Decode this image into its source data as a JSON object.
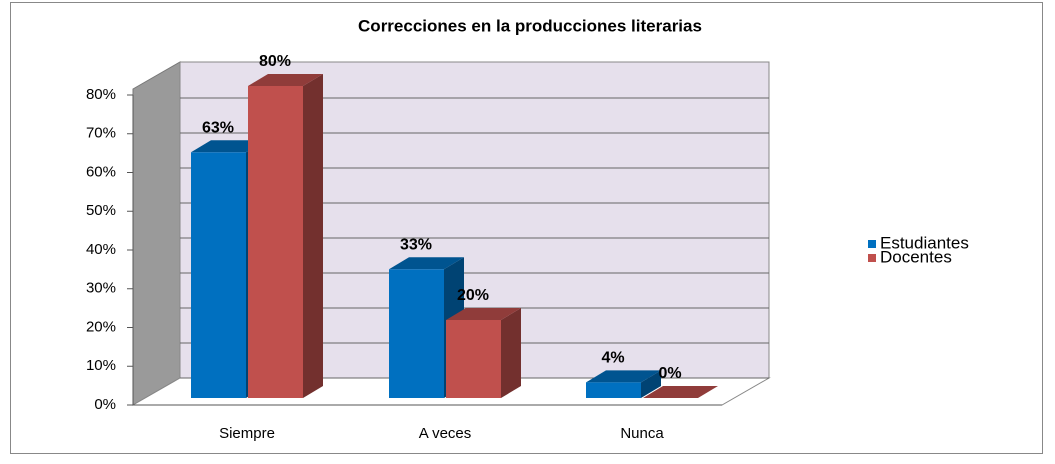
{
  "chart_data": {
    "type": "bar3d",
    "title": "Correcciones en la producciones literarias",
    "categories": [
      "Siempre",
      "A veces",
      "Nunca"
    ],
    "series": [
      {
        "name": "Estudiantes",
        "color": "#0070c0",
        "values": [
          63,
          33,
          4
        ],
        "value_labels": [
          "63%",
          "33%",
          "4%"
        ]
      },
      {
        "name": "Docentes",
        "color": "#c0504d",
        "values": [
          80,
          20,
          0
        ],
        "value_labels": [
          "80%",
          "20%",
          "0%"
        ]
      }
    ],
    "ylim": [
      0,
      80
    ],
    "yticks": [
      {
        "value": 0,
        "label": "0%"
      },
      {
        "value": 10,
        "label": "10%"
      },
      {
        "value": 20,
        "label": "20%"
      },
      {
        "value": 30,
        "label": "30%"
      },
      {
        "value": 40,
        "label": "40%"
      },
      {
        "value": 50,
        "label": "50%"
      },
      {
        "value": 60,
        "label": "60%"
      },
      {
        "value": 70,
        "label": "70%"
      },
      {
        "value": 80,
        "label": "80%"
      }
    ],
    "grid": true,
    "legend": "right"
  }
}
